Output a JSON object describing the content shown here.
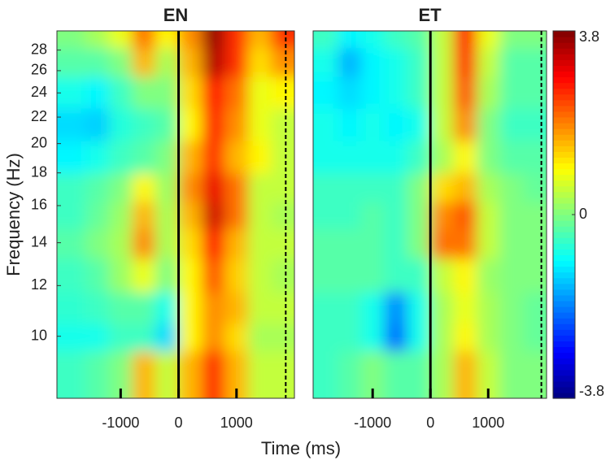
{
  "xlabel": "Time (ms)",
  "ylabel": "Frequency (Hz)",
  "colorbar": {
    "lim": [
      -3.8,
      3.8
    ],
    "ticks": [
      -3.8,
      0,
      3.8
    ],
    "colormap": "jet"
  },
  "chart_data": [
    {
      "type": "heatmap",
      "title": "EN",
      "yscale": "log",
      "x": [
        -1800,
        -1400,
        -1000,
        -600,
        -200,
        200,
        600,
        1000,
        1400,
        1800
      ],
      "y": [
        9,
        10,
        11,
        12.5,
        14,
        15.5,
        17,
        19,
        21.5,
        24,
        27,
        29.5
      ],
      "z": [
        [
          -0.5,
          -0.3,
          0,
          1.5,
          0.5,
          1.5,
          2.5,
          1.5,
          0.5,
          0.5
        ],
        [
          -0.8,
          -0.8,
          -0.5,
          -0.5,
          -1.2,
          1.0,
          1.8,
          1.2,
          0.3,
          0.3
        ],
        [
          -0.6,
          -0.5,
          -0.3,
          -0.3,
          -0.8,
          1.0,
          1.8,
          1.5,
          0.5,
          0.5
        ],
        [
          -0.5,
          -0.3,
          0.2,
          0.8,
          0,
          1.0,
          2.2,
          1.3,
          0.5,
          0.3
        ],
        [
          -0.3,
          0,
          0.3,
          1.8,
          0.3,
          1.2,
          2.8,
          1.5,
          0.5,
          0.5
        ],
        [
          -0.5,
          -0.2,
          0.2,
          1.5,
          0.3,
          1.5,
          3.2,
          2.0,
          0.5,
          0.3
        ],
        [
          -0.5,
          -0.3,
          0,
          1.0,
          0.2,
          1.8,
          3.0,
          2.0,
          0.5,
          0.5
        ],
        [
          -1.0,
          -0.8,
          -0.5,
          -0.3,
          0,
          1.5,
          2.5,
          1.5,
          1.0,
          0.5
        ],
        [
          -1.2,
          -1.3,
          -0.7,
          -0.5,
          -0.3,
          1.0,
          2.6,
          1.8,
          0.8,
          0.5
        ],
        [
          -0.8,
          -1.0,
          -0.5,
          0,
          0,
          1.2,
          2.8,
          2.0,
          0.8,
          1.0
        ],
        [
          -0.3,
          -0.3,
          0,
          1.5,
          0.3,
          1.5,
          3.4,
          2.5,
          1.2,
          1.8
        ],
        [
          0,
          0.3,
          0.8,
          2.0,
          1.0,
          1.8,
          3.6,
          2.5,
          1.5,
          2.5
        ]
      ],
      "xlim": [
        -2100,
        2000
      ],
      "xticks": [
        -1000,
        0,
        1000
      ],
      "ylim": [
        8,
        30
      ],
      "yticks": [
        10,
        12,
        14,
        16,
        18,
        20,
        22,
        24,
        26,
        28
      ],
      "vlines": [
        {
          "x": 0,
          "style": "solid"
        },
        {
          "x": 1850,
          "style": "dashed"
        }
      ]
    },
    {
      "type": "heatmap",
      "title": "ET",
      "yscale": "log",
      "x": [
        -1800,
        -1400,
        -1000,
        -600,
        -200,
        200,
        600,
        1000,
        1400,
        1800
      ],
      "y": [
        9,
        10,
        11,
        12.5,
        14,
        15.5,
        17,
        19,
        21.5,
        24,
        27,
        29.5
      ],
      "z": [
        [
          -0.5,
          -0.3,
          0,
          -0.3,
          -0.3,
          0.3,
          1.5,
          0.5,
          0,
          0
        ],
        [
          -0.5,
          -0.5,
          -0.8,
          -2.0,
          -0.8,
          0.3,
          1.0,
          0.3,
          0,
          -0.2
        ],
        [
          -0.5,
          -0.5,
          -0.8,
          -1.8,
          -0.8,
          0.3,
          0.8,
          0.3,
          0,
          -0.2
        ],
        [
          -0.3,
          -0.3,
          -0.3,
          -0.5,
          -0.5,
          0.5,
          1.0,
          0.2,
          0,
          0
        ],
        [
          -0.3,
          -0.3,
          -0.3,
          -0.5,
          0,
          2.0,
          2.0,
          0.5,
          0,
          0
        ],
        [
          -0.5,
          -0.5,
          -0.3,
          -0.5,
          0,
          1.8,
          2.2,
          0.5,
          0,
          0
        ],
        [
          -0.5,
          -0.5,
          -0.5,
          -0.5,
          0,
          1.2,
          1.5,
          0.3,
          0,
          -0.2
        ],
        [
          -0.8,
          -0.8,
          -0.8,
          -0.8,
          -0.5,
          0.3,
          1.0,
          0,
          -0.3,
          -0.3
        ],
        [
          -0.8,
          -1.0,
          -0.8,
          -1.0,
          -0.8,
          0.5,
          1.8,
          0,
          -0.5,
          -0.5
        ],
        [
          -1.0,
          -1.2,
          -1.0,
          -0.8,
          -0.5,
          0.5,
          2.2,
          0.3,
          -0.3,
          -0.3
        ],
        [
          -0.8,
          -1.5,
          -1.0,
          -0.8,
          -0.5,
          0.5,
          2.5,
          0.5,
          -0.3,
          -0.3
        ],
        [
          -0.5,
          -1.0,
          -0.8,
          -0.5,
          -0.3,
          0.5,
          2.8,
          0.8,
          0,
          0
        ]
      ],
      "xlim": [
        -2030,
        2010
      ],
      "xticks": [
        -1000,
        0,
        1000
      ],
      "ylim": [
        8,
        30
      ],
      "yticks": [],
      "vlines": [
        {
          "x": 0,
          "style": "solid"
        },
        {
          "x": 1920,
          "style": "dashed"
        }
      ]
    }
  ]
}
